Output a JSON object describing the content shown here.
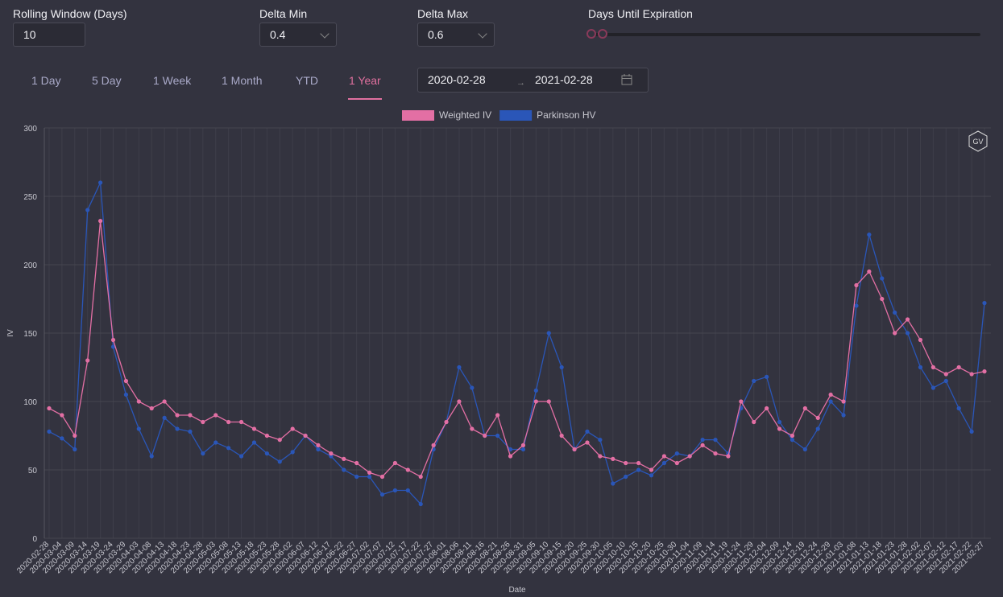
{
  "controls": {
    "rolling_window": {
      "label": "Rolling Window (Days)",
      "value": "10"
    },
    "delta_min": {
      "label": "Delta Min",
      "value": "0.4"
    },
    "delta_max": {
      "label": "Delta Max",
      "value": "0.6"
    },
    "days_until_expiration": {
      "label": "Days Until Expiration"
    },
    "tabs": [
      "1 Day",
      "5 Day",
      "1 Week",
      "1 Month",
      "YTD",
      "1 Year"
    ],
    "active_tab": 5,
    "date_range": {
      "start": "2020-02-28",
      "end": "2021-02-28"
    }
  },
  "chart_data": {
    "type": "line",
    "ylabel": "IV",
    "xlabel": "Date",
    "badge": "GV",
    "categories": [
      "2020-02-28",
      "2020-03-04",
      "2020-03-09",
      "2020-03-14",
      "2020-03-19",
      "2020-03-24",
      "2020-03-29",
      "2020-04-03",
      "2020-04-08",
      "2020-04-13",
      "2020-04-18",
      "2020-04-23",
      "2020-04-28",
      "2020-05-03",
      "2020-05-08",
      "2020-05-13",
      "2020-05-18",
      "2020-05-23",
      "2020-05-28",
      "2020-06-02",
      "2020-06-07",
      "2020-06-12",
      "2020-06-17",
      "2020-06-22",
      "2020-06-27",
      "2020-07-02",
      "2020-07-07",
      "2020-07-12",
      "2020-07-17",
      "2020-07-22",
      "2020-07-27",
      "2020-08-01",
      "2020-08-06",
      "2020-08-11",
      "2020-08-16",
      "2020-08-21",
      "2020-08-26",
      "2020-08-31",
      "2020-09-05",
      "2020-09-10",
      "2020-09-15",
      "2020-09-20",
      "2020-09-25",
      "2020-09-30",
      "2020-10-05",
      "2020-10-10",
      "2020-10-15",
      "2020-10-20",
      "2020-10-25",
      "2020-10-30",
      "2020-11-04",
      "2020-11-09",
      "2020-11-14",
      "2020-11-19",
      "2020-11-24",
      "2020-11-29",
      "2020-12-04",
      "2020-12-09",
      "2020-12-14",
      "2020-12-19",
      "2020-12-24",
      "2020-12-29",
      "2021-01-03",
      "2021-01-08",
      "2021-01-13",
      "2021-01-18",
      "2021-01-23",
      "2021-01-28",
      "2021-02-02",
      "2021-02-07",
      "2021-02-12",
      "2021-02-17",
      "2021-02-22",
      "2021-02-27"
    ],
    "series": [
      {
        "name": "Weighted IV",
        "color": "#e36fa4",
        "values": [
          95,
          90,
          75,
          130,
          232,
          145,
          115,
          100,
          95,
          100,
          90,
          90,
          85,
          90,
          85,
          85,
          80,
          75,
          72,
          80,
          75,
          68,
          62,
          58,
          55,
          48,
          45,
          55,
          50,
          45,
          68,
          85,
          100,
          80,
          75,
          90,
          60,
          68,
          100,
          100,
          75,
          65,
          70,
          60,
          58,
          55,
          55,
          50,
          60,
          55,
          60,
          68,
          62,
          60,
          100,
          85,
          95,
          80,
          75,
          95,
          88,
          105,
          100,
          185,
          195,
          175,
          150,
          160,
          145,
          125,
          120,
          125,
          120,
          122
        ]
      },
      {
        "name": "Parkinson HV",
        "color": "#2a56b8",
        "values": [
          78,
          73,
          65,
          240,
          260,
          140,
          105,
          80,
          60,
          88,
          80,
          78,
          62,
          70,
          66,
          60,
          70,
          62,
          56,
          63,
          75,
          65,
          60,
          50,
          45,
          45,
          32,
          35,
          35,
          25,
          65,
          85,
          125,
          110,
          75,
          75,
          65,
          65,
          108,
          150,
          125,
          65,
          78,
          72,
          40,
          45,
          50,
          46,
          55,
          62,
          60,
          72,
          72,
          62,
          95,
          115,
          118,
          85,
          72,
          65,
          80,
          100,
          90,
          170,
          222,
          190,
          165,
          150,
          125,
          110,
          115,
          95,
          78,
          172
        ]
      }
    ],
    "ylim": [
      0,
      300
    ],
    "yticks": [
      0,
      50,
      100,
      150,
      200,
      250,
      300
    ],
    "grid": true
  }
}
